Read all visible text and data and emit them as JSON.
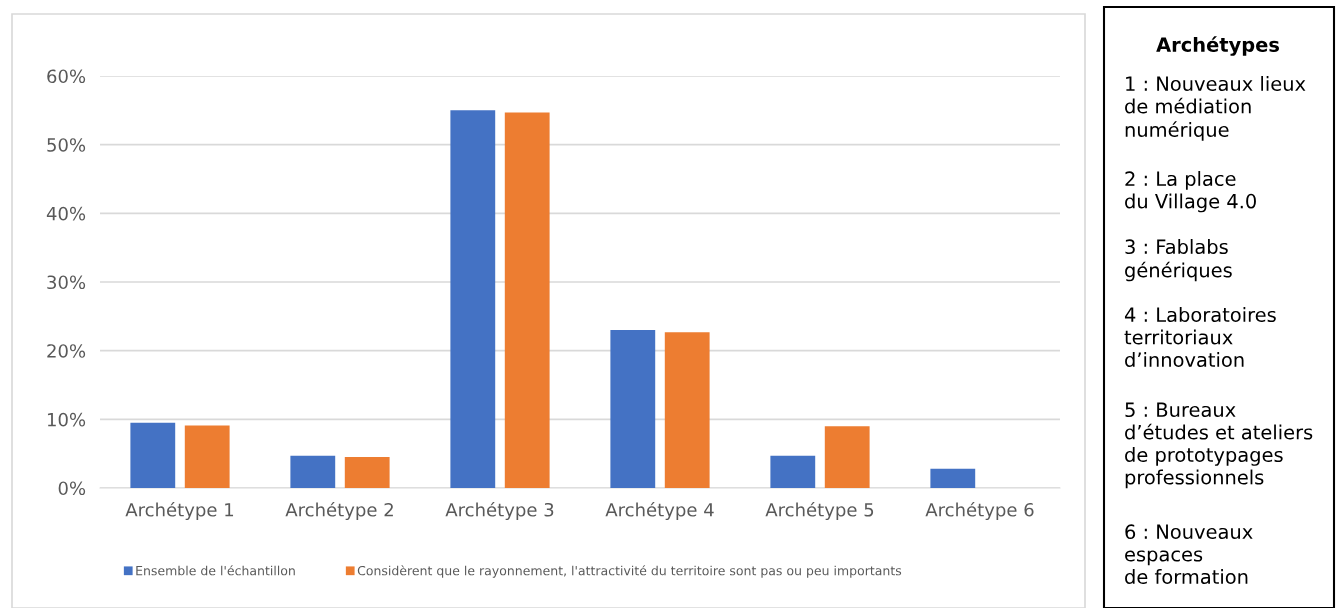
{
  "chart_data": {
    "type": "bar",
    "categories": [
      "Archétype 1",
      "Archétype 2",
      "Archétype 3",
      "Archétype 4",
      "Archétype 5",
      "Archétype 6"
    ],
    "series": [
      {
        "name": "Ensemble de l'échantillon",
        "color": "#4472c4",
        "values": [
          9.5,
          4.7,
          55.0,
          23.0,
          4.7,
          2.8
        ]
      },
      {
        "name": "Considèrent que le rayonnement, l'attractivité du territoire sont pas ou peu importants",
        "color": "#ed7d31",
        "values": [
          9.1,
          4.5,
          54.7,
          22.7,
          9.0,
          0
        ]
      }
    ],
    "ylim": [
      0,
      60
    ],
    "yticks": [
      {
        "value": 0,
        "label": "0%"
      },
      {
        "value": 10,
        "label": "10%"
      },
      {
        "value": 20,
        "label": "20%"
      },
      {
        "value": 30,
        "label": "30%"
      },
      {
        "value": 40,
        "label": "40%"
      },
      {
        "value": 50,
        "label": "50%"
      },
      {
        "value": 60,
        "label": "60%"
      }
    ],
    "grid": "y",
    "legend": "bottom",
    "annotations": [
      "Archétypes",
      "1 : Nouveaux lieux\nde médiation\nnumérique",
      "2 : La place\ndu Village 4.0",
      "3 : Fablabs\ngénériques",
      "4 : Laboratoires\nterritoriaux\nd’innovation",
      "5 : Bureaux\nd’études et ateliers\nde prototypages\nprofessionnels",
      "6 : Nouveaux\nespaces\nde formation"
    ]
  }
}
